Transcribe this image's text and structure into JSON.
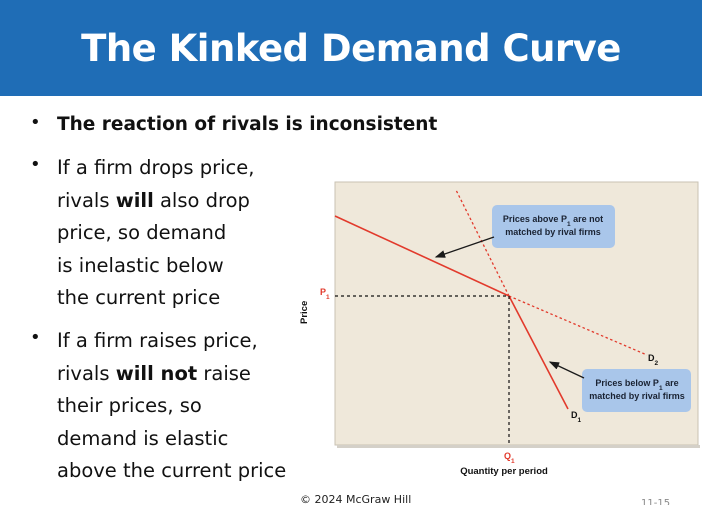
{
  "slide": {
    "title": "The Kinked Demand Curve",
    "bullet1": "The reaction of rivals is inconsistent",
    "bullet2_lines": [
      {
        "pre": "If a firm drops price,",
        "bold": "",
        "post": ""
      },
      {
        "pre": "rivals ",
        "bold": "will",
        "post": " also drop"
      },
      {
        "pre": "price, so demand",
        "bold": "",
        "post": ""
      },
      {
        "pre": "is inelastic below",
        "bold": "",
        "post": ""
      },
      {
        "pre": "the current price",
        "bold": "",
        "post": ""
      }
    ],
    "bullet3_lines": [
      {
        "pre": "If a firm raises price,",
        "bold": "",
        "post": ""
      },
      {
        "pre": "rivals ",
        "bold": "will not",
        "post": " raise"
      },
      {
        "pre": "their prices, so",
        "bold": "",
        "post": ""
      },
      {
        "pre": "demand is elastic",
        "bold": "",
        "post": ""
      },
      {
        "pre": "above the current price",
        "bold": "",
        "post": ""
      }
    ],
    "footer": "© 2024 McGraw Hill",
    "page_number": "11-15"
  },
  "chart_data": {
    "type": "line",
    "xlabel": "Quantity per period",
    "ylabel": "Price",
    "price_marker": {
      "label": "P",
      "subscript": "1"
    },
    "quantity_marker": {
      "label": "Q",
      "subscript": "1"
    },
    "series": [
      {
        "name_main": "D",
        "name_sub": "1",
        "style": "solid",
        "color": "#e23a2c"
      },
      {
        "name_main": "D",
        "name_sub": "2",
        "style": "dotted",
        "color": "#e23a2c"
      }
    ],
    "callouts": [
      {
        "pre": "Prices above P",
        "sub": "1",
        "post": " are not",
        "line2": "matched by rival firms"
      },
      {
        "pre": "Prices below P",
        "sub": "1",
        "post": " are",
        "line2": "matched by rival firms"
      }
    ],
    "colors": {
      "plot_bg": "#efe8da",
      "callout_bg": "#a9c6ea",
      "title_bar": "#1f6db6"
    }
  }
}
